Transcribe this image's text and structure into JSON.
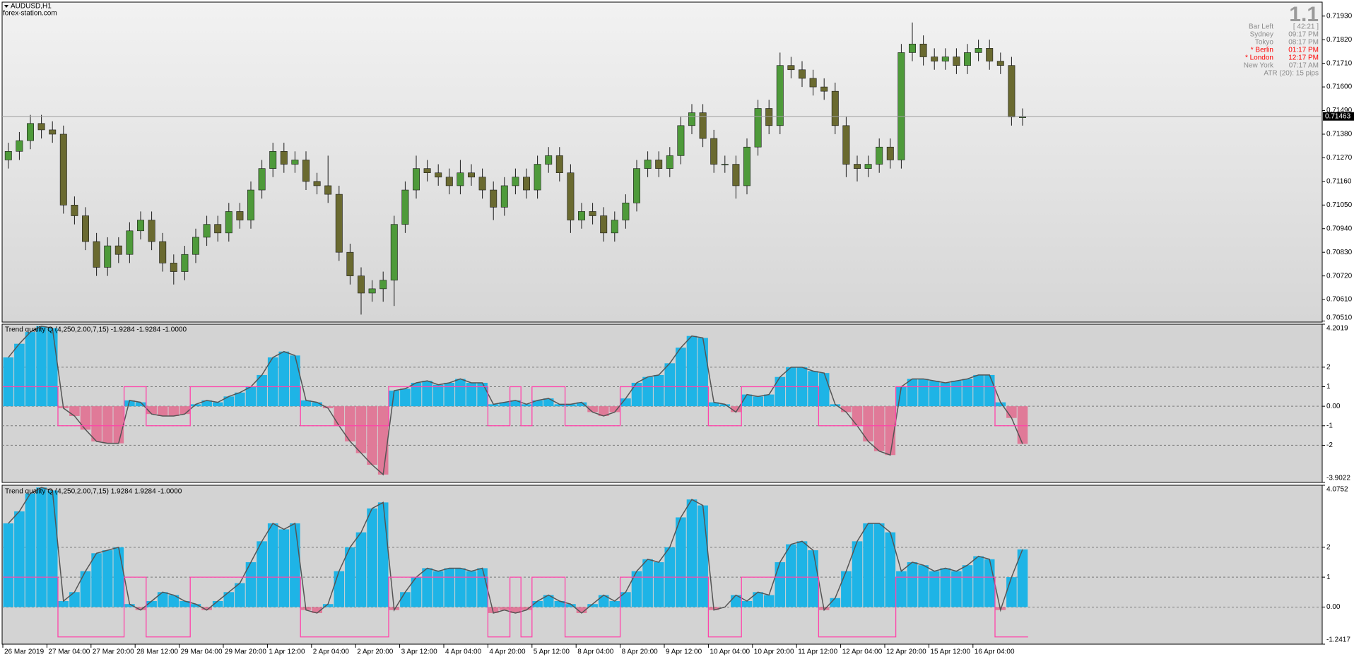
{
  "chart_data": [
    {
      "type": "candlestick",
      "title": "AUDUSD,H1",
      "subtitle": "forex-station.com",
      "open": [
        0.7126,
        0.713,
        0.7135,
        0.7143,
        0.714,
        0.7138,
        0.7105,
        0.71,
        0.7088,
        0.7076,
        0.7086,
        0.7082,
        0.7093,
        0.7098,
        0.7088,
        0.7078,
        0.7074,
        0.7082,
        0.709,
        0.7096,
        0.7092,
        0.7102,
        0.7098,
        0.7112,
        0.7122,
        0.713,
        0.7124,
        0.7126,
        0.7116,
        0.7114,
        0.711,
        0.7083,
        0.7072,
        0.7064,
        0.7066,
        0.707,
        0.7096,
        0.7112,
        0.7122,
        0.712,
        0.7118,
        0.7114,
        0.712,
        0.7118,
        0.7112,
        0.7104,
        0.7114,
        0.7118,
        0.7112,
        0.7124,
        0.7128,
        0.712,
        0.7098,
        0.7102,
        0.71,
        0.7092,
        0.7098,
        0.7106,
        0.7122,
        0.7126,
        0.7122,
        0.7128,
        0.7142,
        0.7148,
        0.7136,
        0.7124,
        0.7124,
        0.7114,
        0.7132,
        0.715,
        0.7142,
        0.717,
        0.7168,
        0.7164,
        0.716,
        0.7158,
        0.7142,
        0.7124,
        0.7122,
        0.7124,
        0.7132,
        0.7126,
        0.7176,
        0.718,
        0.7174,
        0.7172,
        0.7174,
        0.717,
        0.7176,
        0.7178,
        0.7172,
        0.717,
        0.7146
      ],
      "high": [
        0.7134,
        0.7139,
        0.7147,
        0.7147,
        0.7144,
        0.7142,
        0.7109,
        0.7104,
        0.7092,
        0.709,
        0.709,
        0.7097,
        0.7102,
        0.7102,
        0.7092,
        0.7082,
        0.7086,
        0.7094,
        0.71,
        0.71,
        0.7106,
        0.7106,
        0.7116,
        0.7126,
        0.7134,
        0.7134,
        0.713,
        0.713,
        0.712,
        0.7128,
        0.7114,
        0.7087,
        0.7076,
        0.707,
        0.7074,
        0.71,
        0.7116,
        0.7128,
        0.7126,
        0.7124,
        0.7122,
        0.7126,
        0.7124,
        0.7122,
        0.7116,
        0.7118,
        0.7122,
        0.7122,
        0.7128,
        0.7132,
        0.7132,
        0.7124,
        0.7106,
        0.7106,
        0.7104,
        0.7102,
        0.711,
        0.7126,
        0.713,
        0.713,
        0.7132,
        0.7146,
        0.7152,
        0.7152,
        0.714,
        0.7128,
        0.7128,
        0.7136,
        0.7154,
        0.7154,
        0.7176,
        0.7174,
        0.7172,
        0.7168,
        0.7164,
        0.7162,
        0.7146,
        0.7128,
        0.7128,
        0.7136,
        0.7136,
        0.718,
        0.719,
        0.7184,
        0.7178,
        0.7178,
        0.7178,
        0.718,
        0.7182,
        0.7182,
        0.7176,
        0.7174,
        0.715
      ],
      "low": [
        0.7122,
        0.7126,
        0.7131,
        0.7136,
        0.7134,
        0.7101,
        0.7096,
        0.7084,
        0.7072,
        0.7072,
        0.7078,
        0.7078,
        0.7089,
        0.7084,
        0.7074,
        0.7068,
        0.707,
        0.7078,
        0.7086,
        0.7088,
        0.7088,
        0.7094,
        0.7094,
        0.7108,
        0.7118,
        0.712,
        0.712,
        0.7112,
        0.711,
        0.7106,
        0.7079,
        0.7068,
        0.7054,
        0.706,
        0.706,
        0.7058,
        0.7092,
        0.7108,
        0.7116,
        0.7114,
        0.711,
        0.711,
        0.7114,
        0.7108,
        0.7098,
        0.71,
        0.711,
        0.7108,
        0.7108,
        0.712,
        0.7116,
        0.7092,
        0.7094,
        0.7096,
        0.7088,
        0.7088,
        0.7094,
        0.7102,
        0.7118,
        0.7118,
        0.7118,
        0.7124,
        0.7138,
        0.7132,
        0.712,
        0.712,
        0.7108,
        0.711,
        0.7128,
        0.7138,
        0.7138,
        0.7164,
        0.716,
        0.7156,
        0.7154,
        0.7138,
        0.7118,
        0.7116,
        0.7118,
        0.712,
        0.7122,
        0.7122,
        0.7172,
        0.717,
        0.7168,
        0.7168,
        0.7166,
        0.7166,
        0.7172,
        0.7168,
        0.7166,
        0.7142,
        0.7142
      ],
      "close": [
        0.713,
        0.7135,
        0.7143,
        0.714,
        0.7138,
        0.7105,
        0.71,
        0.7088,
        0.7076,
        0.7086,
        0.7082,
        0.7093,
        0.7098,
        0.7088,
        0.7078,
        0.7074,
        0.7082,
        0.709,
        0.7096,
        0.7092,
        0.7102,
        0.7098,
        0.7112,
        0.7122,
        0.713,
        0.7124,
        0.7126,
        0.7116,
        0.7114,
        0.711,
        0.7083,
        0.7072,
        0.7064,
        0.7066,
        0.707,
        0.7096,
        0.7112,
        0.7122,
        0.712,
        0.7118,
        0.7114,
        0.712,
        0.7118,
        0.7112,
        0.7104,
        0.7114,
        0.7118,
        0.7112,
        0.7124,
        0.7128,
        0.712,
        0.7098,
        0.7102,
        0.71,
        0.7092,
        0.7098,
        0.7106,
        0.7122,
        0.7126,
        0.7122,
        0.7128,
        0.7142,
        0.7148,
        0.7136,
        0.7124,
        0.7124,
        0.7114,
        0.7132,
        0.715,
        0.7142,
        0.717,
        0.7168,
        0.7164,
        0.716,
        0.7158,
        0.7142,
        0.7124,
        0.7122,
        0.7124,
        0.7132,
        0.7126,
        0.7176,
        0.718,
        0.7174,
        0.7172,
        0.7174,
        0.717,
        0.7176,
        0.7178,
        0.7172,
        0.717,
        0.7146,
        0.7146
      ],
      "bull_color": "#4e9a3a",
      "bear_color": "#6a6a30",
      "current_price": 0.71463,
      "ylim": [
        0.70505,
        0.71995
      ],
      "yticks": [
        {
          "value": 0.7193,
          "label": "0.71930"
        },
        {
          "value": 0.7182,
          "label": "0.71820"
        },
        {
          "value": 0.7171,
          "label": "0.71710"
        },
        {
          "value": 0.716,
          "label": "0.71600"
        },
        {
          "value": 0.7149,
          "label": "0.71490"
        },
        {
          "value": 0.7138,
          "label": "0.71380"
        },
        {
          "value": 0.7127,
          "label": "0.71270"
        },
        {
          "value": 0.7116,
          "label": "0.71160"
        },
        {
          "value": 0.7105,
          "label": "0.71050"
        },
        {
          "value": 0.7094,
          "label": "0.70940"
        },
        {
          "value": 0.7083,
          "label": "0.70830"
        },
        {
          "value": 0.7072,
          "label": "0.70720"
        },
        {
          "value": 0.7061,
          "label": "0.70610"
        },
        {
          "value": 0.7051,
          "label": "0.70510"
        }
      ]
    },
    {
      "type": "histogram",
      "title": "Trend quality Q (4,250,2.00,7,15) -1.9284 -1.9284 -1.0000",
      "values": [
        2.5,
        3.2,
        3.8,
        4.1,
        4.0,
        -0.1,
        -0.5,
        -1.2,
        -1.8,
        -1.9,
        -1.9,
        0.3,
        0.2,
        -0.4,
        -0.5,
        -0.5,
        -0.4,
        0.1,
        0.3,
        0.2,
        0.5,
        0.7,
        1.0,
        1.6,
        2.5,
        2.8,
        2.6,
        0.3,
        0.2,
        -0.1,
        -1.0,
        -1.8,
        -2.4,
        -3.0,
        -3.5,
        0.8,
        0.9,
        1.2,
        1.3,
        1.1,
        1.2,
        1.4,
        1.2,
        1.2,
        0.1,
        0.2,
        0.3,
        0.1,
        0.3,
        0.4,
        0.1,
        0.1,
        0.2,
        -0.3,
        -0.5,
        -0.3,
        0.4,
        1.2,
        1.5,
        1.6,
        2.2,
        3.0,
        3.6,
        3.5,
        0.2,
        0.1,
        -0.3,
        0.6,
        0.5,
        0.6,
        1.5,
        2.0,
        2.0,
        1.8,
        1.7,
        0.1,
        -0.3,
        -1.0,
        -1.8,
        -2.3,
        -2.5,
        1.0,
        1.4,
        1.4,
        1.3,
        1.2,
        1.3,
        1.4,
        1.6,
        1.6,
        0.2,
        -0.6,
        -1.9284
      ],
      "signal": [
        1,
        1,
        1,
        1,
        1,
        -1,
        -1,
        -1,
        -1,
        -1,
        -1,
        1,
        1,
        -1,
        -1,
        -1,
        -1,
        1,
        1,
        1,
        1,
        1,
        1,
        1,
        1,
        1,
        1,
        -1,
        -1,
        -1,
        -1,
        -1,
        -1,
        -1,
        -1,
        1,
        1,
        1,
        1,
        1,
        1,
        1,
        1,
        1,
        -1,
        -1,
        1,
        -1,
        1,
        1,
        1,
        -1,
        -1,
        -1,
        -1,
        -1,
        1,
        1,
        1,
        1,
        1,
        1,
        1,
        1,
        -1,
        -1,
        -1,
        1,
        1,
        1,
        1,
        1,
        1,
        1,
        -1,
        -1,
        -1,
        -1,
        -1,
        -1,
        -1,
        1,
        1,
        1,
        1,
        1,
        1,
        1,
        1,
        1,
        -1,
        -1,
        -1
      ],
      "pos_color": "#1eb4e6",
      "neg_color": "#e07a98",
      "signal_color": "#ff44aa",
      "ylim": [
        -3.9022,
        4.2019
      ],
      "yticks": [
        4.2019,
        2,
        1,
        {
          "value": 0,
          "label": "0.00"
        },
        -1,
        -2,
        -3.9022
      ]
    },
    {
      "type": "histogram",
      "title": "Trend quality Q (4,250,2.00,7,15) 1.9284 1.9284 -1.0000",
      "values": [
        2.8,
        3.2,
        3.8,
        4.0,
        3.9,
        0.2,
        0.5,
        1.2,
        1.8,
        1.9,
        2.0,
        0.1,
        -0.1,
        0.2,
        0.5,
        0.4,
        0.2,
        0.1,
        -0.1,
        0.2,
        0.5,
        0.8,
        1.5,
        2.2,
        2.8,
        2.6,
        2.8,
        -0.1,
        -0.2,
        0.1,
        1.2,
        2.0,
        2.5,
        3.3,
        3.5,
        -0.1,
        0.5,
        1.0,
        1.3,
        1.2,
        1.3,
        1.3,
        1.2,
        1.3,
        -0.2,
        -0.1,
        -0.2,
        -0.1,
        0.2,
        0.4,
        0.2,
        0.1,
        -0.2,
        0.1,
        0.4,
        0.2,
        0.5,
        1.2,
        1.6,
        1.5,
        2.0,
        3.0,
        3.6,
        3.4,
        -0.1,
        0.0,
        0.4,
        0.2,
        0.5,
        0.4,
        1.5,
        2.1,
        2.2,
        1.9,
        -0.1,
        0.3,
        1.2,
        2.2,
        2.8,
        2.8,
        2.5,
        1.2,
        1.5,
        1.4,
        1.2,
        1.3,
        1.2,
        1.4,
        1.7,
        1.6,
        -0.1,
        1.0,
        1.9284
      ],
      "signal": [
        1,
        1,
        1,
        1,
        1,
        -1,
        -1,
        -1,
        -1,
        -1,
        -1,
        1,
        1,
        -1,
        -1,
        -1,
        -1,
        1,
        1,
        1,
        1,
        1,
        1,
        1,
        1,
        1,
        1,
        -1,
        -1,
        -1,
        -1,
        -1,
        -1,
        -1,
        -1,
        1,
        1,
        1,
        1,
        1,
        1,
        1,
        1,
        1,
        -1,
        -1,
        1,
        -1,
        1,
        1,
        1,
        -1,
        -1,
        -1,
        -1,
        -1,
        1,
        1,
        1,
        1,
        1,
        1,
        1,
        1,
        -1,
        -1,
        -1,
        1,
        1,
        1,
        1,
        1,
        1,
        1,
        -1,
        -1,
        -1,
        -1,
        -1,
        -1,
        -1,
        1,
        1,
        1,
        1,
        1,
        1,
        1,
        1,
        1,
        -1,
        -1,
        -1
      ],
      "pos_color": "#1eb4e6",
      "neg_color": "#e07a98",
      "signal_color": "#ff44aa",
      "ylim": [
        -1.2417,
        4.0752
      ],
      "yticks": [
        4.0752,
        2,
        1,
        {
          "value": 0,
          "label": "0.00"
        },
        -1.2417
      ],
      "categories": [
        "26 Mar 2019",
        null,
        null,
        null,
        "27 Mar 04:00",
        null,
        null,
        null,
        "27 Mar 20:00",
        null,
        null,
        null,
        "28 Mar 12:00",
        null,
        null,
        null,
        "29 Mar 04:00",
        null,
        null,
        null,
        "29 Mar 20:00",
        null,
        null,
        null,
        "1 Apr 12:00",
        null,
        null,
        null,
        "2 Apr 04:00",
        null,
        null,
        null,
        "2 Apr 20:00",
        null,
        null,
        null,
        "3 Apr 12:00",
        null,
        null,
        null,
        "4 Apr 04:00",
        null,
        null,
        null,
        "4 Apr 20:00",
        null,
        null,
        null,
        "5 Apr 12:00",
        null,
        null,
        null,
        "8 Apr 04:00",
        null,
        null,
        null,
        "8 Apr 20:00",
        null,
        null,
        null,
        "9 Apr 12:00",
        null,
        null,
        null,
        "10 Apr 04:00",
        null,
        null,
        null,
        "10 Apr 20:00",
        null,
        null,
        null,
        "11 Apr 12:00",
        null,
        null,
        null,
        "12 Apr 04:00",
        null,
        null,
        null,
        "12 Apr 20:00",
        null,
        null,
        null,
        "15 Apr 12:00",
        null,
        null,
        null,
        "16 Apr 04:00",
        null,
        null,
        null,
        null
      ]
    }
  ],
  "info_panel": {
    "big": "1.1",
    "rows": [
      {
        "label": "Bar Left",
        "value": "[ 42:21 ]",
        "color": "#8c8c8c"
      },
      {
        "label": "Sydney",
        "value": "09:17 PM",
        "color": "#8c8c8c"
      },
      {
        "label": "Tokyo",
        "value": "08:17 PM",
        "color": "#8c8c8c"
      },
      {
        "label": "* Berlin",
        "value": "01:17 PM",
        "color": "#ff0000"
      },
      {
        "label": "* London",
        "value": "12:17 PM",
        "color": "#ff0000"
      },
      {
        "label": "New York",
        "value": "07:17 AM",
        "color": "#8c8c8c"
      }
    ],
    "atr": "ATR (20): 15 pips"
  }
}
